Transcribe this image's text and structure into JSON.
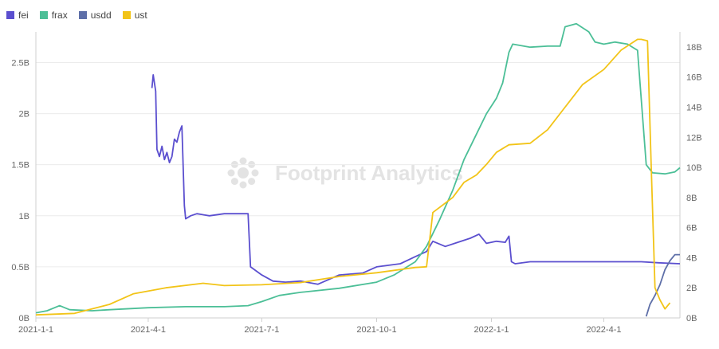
{
  "chart_data": {
    "type": "line",
    "title": "",
    "watermark": "Footprint Analytics",
    "xlabel": "",
    "ylabel": "",
    "x_range": [
      "2021-01-01",
      "2022-06-01"
    ],
    "x_ticks": [
      "2021-1-1",
      "2021-4-1",
      "2021-7-1",
      "2021-10-1",
      "2022-1-1",
      "2022-4-1"
    ],
    "y_left": {
      "range": [
        0,
        2.8
      ],
      "ticks": [
        0,
        0.5,
        1,
        1.5,
        2,
        2.5
      ],
      "tick_labels": [
        "0B",
        "0.5B",
        "1B",
        "1.5B",
        "2B",
        "2.5B"
      ]
    },
    "y_right": {
      "range": [
        0,
        19
      ],
      "ticks": [
        0,
        2,
        4,
        6,
        8,
        10,
        12,
        14,
        16,
        18
      ],
      "tick_labels": [
        "0B",
        "2B",
        "4B",
        "6B",
        "8B",
        "10B",
        "12B",
        "14B",
        "16B",
        "18B"
      ]
    },
    "grid": true,
    "legend_position": "top-left",
    "series": [
      {
        "name": "fei",
        "color": "#5b4fcf",
        "axis": "left",
        "points": [
          [
            "2021-04-04",
            2.25
          ],
          [
            "2021-04-05",
            2.38
          ],
          [
            "2021-04-07",
            2.22
          ],
          [
            "2021-04-08",
            1.65
          ],
          [
            "2021-04-10",
            1.58
          ],
          [
            "2021-04-12",
            1.68
          ],
          [
            "2021-04-14",
            1.55
          ],
          [
            "2021-04-16",
            1.62
          ],
          [
            "2021-04-18",
            1.52
          ],
          [
            "2021-04-20",
            1.58
          ],
          [
            "2021-04-22",
            1.75
          ],
          [
            "2021-04-24",
            1.72
          ],
          [
            "2021-04-26",
            1.82
          ],
          [
            "2021-04-28",
            1.88
          ],
          [
            "2021-04-30",
            1.1
          ],
          [
            "2021-05-01",
            0.97
          ],
          [
            "2021-05-05",
            1.0
          ],
          [
            "2021-05-10",
            1.02
          ],
          [
            "2021-05-20",
            1.0
          ],
          [
            "2021-06-01",
            1.02
          ],
          [
            "2021-06-20",
            1.02
          ],
          [
            "2021-06-22",
            0.5
          ],
          [
            "2021-07-01",
            0.42
          ],
          [
            "2021-07-10",
            0.36
          ],
          [
            "2021-07-20",
            0.35
          ],
          [
            "2021-08-01",
            0.36
          ],
          [
            "2021-08-15",
            0.33
          ],
          [
            "2021-09-01",
            0.42
          ],
          [
            "2021-09-20",
            0.44
          ],
          [
            "2021-10-01",
            0.5
          ],
          [
            "2021-10-20",
            0.53
          ],
          [
            "2021-11-01",
            0.6
          ],
          [
            "2021-11-10",
            0.65
          ],
          [
            "2021-11-15",
            0.75
          ],
          [
            "2021-11-25",
            0.7
          ],
          [
            "2021-12-05",
            0.74
          ],
          [
            "2021-12-15",
            0.78
          ],
          [
            "2021-12-22",
            0.82
          ],
          [
            "2021-12-28",
            0.73
          ],
          [
            "2022-01-05",
            0.75
          ],
          [
            "2022-01-12",
            0.74
          ],
          [
            "2022-01-15",
            0.8
          ],
          [
            "2022-01-17",
            0.55
          ],
          [
            "2022-01-20",
            0.53
          ],
          [
            "2022-02-01",
            0.55
          ],
          [
            "2022-03-01",
            0.55
          ],
          [
            "2022-04-01",
            0.55
          ],
          [
            "2022-05-01",
            0.55
          ],
          [
            "2022-05-15",
            0.54
          ],
          [
            "2022-06-01",
            0.53
          ]
        ]
      },
      {
        "name": "frax",
        "color": "#4cbf97",
        "axis": "left",
        "points": [
          [
            "2021-01-01",
            0.05
          ],
          [
            "2021-01-10",
            0.07
          ],
          [
            "2021-01-20",
            0.12
          ],
          [
            "2021-01-28",
            0.08
          ],
          [
            "2021-02-15",
            0.07
          ],
          [
            "2021-03-01",
            0.08
          ],
          [
            "2021-04-01",
            0.1
          ],
          [
            "2021-05-01",
            0.11
          ],
          [
            "2021-06-01",
            0.11
          ],
          [
            "2021-06-20",
            0.12
          ],
          [
            "2021-07-01",
            0.16
          ],
          [
            "2021-07-15",
            0.22
          ],
          [
            "2021-08-01",
            0.25
          ],
          [
            "2021-09-01",
            0.29
          ],
          [
            "2021-10-01",
            0.35
          ],
          [
            "2021-10-15",
            0.42
          ],
          [
            "2021-11-01",
            0.55
          ],
          [
            "2021-11-10",
            0.7
          ],
          [
            "2021-11-20",
            0.95
          ],
          [
            "2021-12-01",
            1.25
          ],
          [
            "2021-12-10",
            1.55
          ],
          [
            "2021-12-20",
            1.8
          ],
          [
            "2021-12-28",
            2.0
          ],
          [
            "2022-01-05",
            2.15
          ],
          [
            "2022-01-10",
            2.3
          ],
          [
            "2022-01-15",
            2.6
          ],
          [
            "2022-01-18",
            2.68
          ],
          [
            "2022-02-01",
            2.65
          ],
          [
            "2022-02-15",
            2.66
          ],
          [
            "2022-02-25",
            2.66
          ],
          [
            "2022-03-01",
            2.85
          ],
          [
            "2022-03-10",
            2.88
          ],
          [
            "2022-03-20",
            2.8
          ],
          [
            "2022-03-25",
            2.7
          ],
          [
            "2022-04-01",
            2.68
          ],
          [
            "2022-04-10",
            2.7
          ],
          [
            "2022-04-20",
            2.68
          ],
          [
            "2022-04-28",
            2.62
          ],
          [
            "2022-05-05",
            1.5
          ],
          [
            "2022-05-10",
            1.42
          ],
          [
            "2022-05-20",
            1.41
          ],
          [
            "2022-05-28",
            1.43
          ],
          [
            "2022-06-01",
            1.47
          ]
        ]
      },
      {
        "name": "usdd",
        "color": "#5e6fa8",
        "axis": "right",
        "points": [
          [
            "2022-05-05",
            0.1
          ],
          [
            "2022-05-08",
            0.9
          ],
          [
            "2022-05-12",
            1.5
          ],
          [
            "2022-05-16",
            2.2
          ],
          [
            "2022-05-20",
            3.2
          ],
          [
            "2022-05-24",
            3.8
          ],
          [
            "2022-05-28",
            4.2
          ],
          [
            "2022-06-01",
            4.2
          ]
        ]
      },
      {
        "name": "ust",
        "color": "#f2c418",
        "axis": "right",
        "points": [
          [
            "2021-01-01",
            0.2
          ],
          [
            "2021-02-01",
            0.3
          ],
          [
            "2021-03-01",
            0.9
          ],
          [
            "2021-03-20",
            1.6
          ],
          [
            "2021-04-15",
            2.0
          ],
          [
            "2021-05-15",
            2.3
          ],
          [
            "2021-06-01",
            2.15
          ],
          [
            "2021-07-01",
            2.2
          ],
          [
            "2021-08-01",
            2.35
          ],
          [
            "2021-09-01",
            2.75
          ],
          [
            "2021-10-01",
            3.0
          ],
          [
            "2021-11-01",
            3.35
          ],
          [
            "2021-11-10",
            3.4
          ],
          [
            "2021-11-15",
            7.0
          ],
          [
            "2021-12-01",
            8.0
          ],
          [
            "2021-12-10",
            9.0
          ],
          [
            "2021-12-20",
            9.5
          ],
          [
            "2021-12-28",
            10.2
          ],
          [
            "2022-01-05",
            11.0
          ],
          [
            "2022-01-15",
            11.5
          ],
          [
            "2022-02-01",
            11.6
          ],
          [
            "2022-02-15",
            12.5
          ],
          [
            "2022-03-01",
            14.0
          ],
          [
            "2022-03-15",
            15.5
          ],
          [
            "2022-04-01",
            16.5
          ],
          [
            "2022-04-15",
            17.8
          ],
          [
            "2022-04-28",
            18.5
          ],
          [
            "2022-05-01",
            18.5
          ],
          [
            "2022-05-06",
            18.4
          ],
          [
            "2022-05-09",
            10.0
          ],
          [
            "2022-05-12",
            2.0
          ],
          [
            "2022-05-16",
            1.2
          ],
          [
            "2022-05-20",
            0.6
          ],
          [
            "2022-05-24",
            1.0
          ]
        ]
      }
    ]
  }
}
